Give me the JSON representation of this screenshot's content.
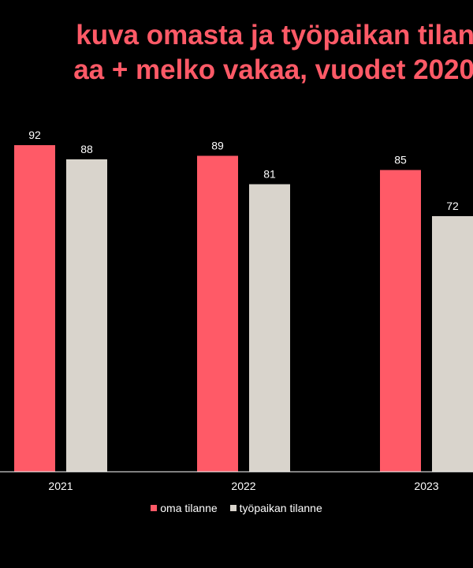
{
  "chart_data": {
    "type": "bar",
    "title_lines": [
      "kuva omasta ja työpaikan tilan",
      "aa + melko vakaa, vuodet 2020"
    ],
    "categories": [
      "2021",
      "2022",
      "2023"
    ],
    "series": [
      {
        "name": "oma tilanne",
        "values": [
          92,
          89,
          85
        ],
        "color": "#ff5a67"
      },
      {
        "name": "työpaikan tilanne",
        "values": [
          88,
          81,
          72
        ],
        "color": "#d9d4cc"
      }
    ],
    "ylim": [
      0,
      100
    ],
    "grid": false,
    "legend_position": "bottom",
    "data_labels": true
  },
  "colors": {
    "background": "#000000",
    "title": "#ff5a67",
    "text": "#ffffff",
    "axis": "#ffffff"
  }
}
